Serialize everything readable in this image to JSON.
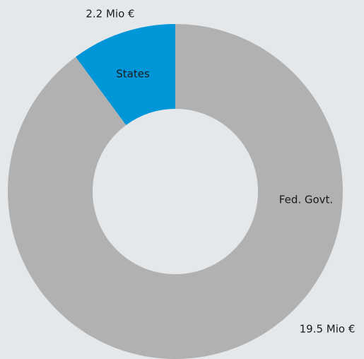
{
  "chart_data": {
    "type": "donut",
    "categories": [
      "Fed. Govt.",
      "States"
    ],
    "values": [
      19.5,
      2.2
    ],
    "value_labels": [
      "19.5 Mio €",
      "2.2 Mio €"
    ],
    "colors": [
      "#b1b1b1",
      "#0096d8"
    ]
  }
}
